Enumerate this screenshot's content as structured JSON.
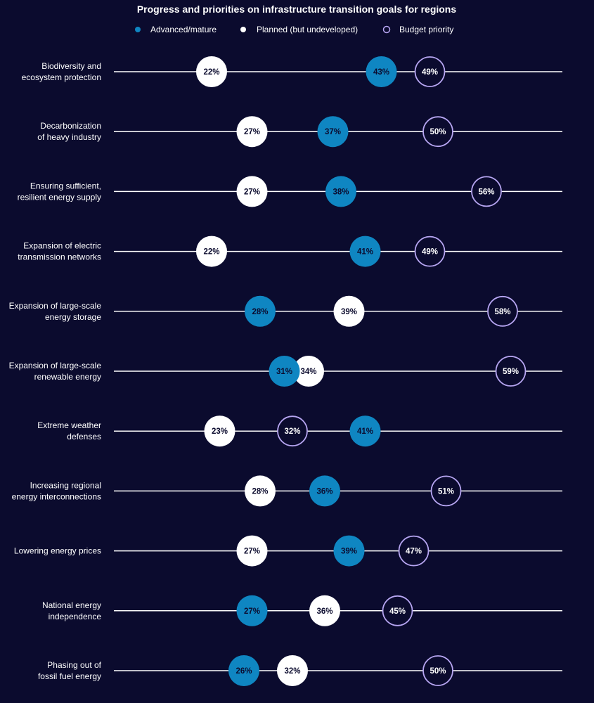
{
  "chart_data": {
    "type": "dot-plot",
    "title": "Progress and priorities on infrastructure transition goals for regions",
    "unit": "%",
    "legend": [
      {
        "key": "advanced",
        "label": "Advanced/mature",
        "color": "#0f86c2",
        "style": "filled"
      },
      {
        "key": "planned",
        "label": "Planned (but undeveloped)",
        "color": "#ffffff",
        "style": "filled"
      },
      {
        "key": "budget",
        "label": "Budget priority",
        "color": "#b7a6f2",
        "style": "outline"
      }
    ],
    "categories": [
      {
        "label": [
          "Biodiversity and",
          "ecosystem protection"
        ],
        "advanced": 43,
        "planned": 22,
        "budget": 49
      },
      {
        "label": [
          "Decarbonization",
          "of heavy industry"
        ],
        "advanced": 37,
        "planned": 27,
        "budget": 50
      },
      {
        "label": [
          "Ensuring sufficient,",
          "resilient energy supply"
        ],
        "advanced": 38,
        "planned": 27,
        "budget": 56
      },
      {
        "label": [
          "Expansion of electric",
          "transmission networks"
        ],
        "advanced": 41,
        "planned": 22,
        "budget": 49
      },
      {
        "label": [
          "Expansion of large-scale",
          "energy storage"
        ],
        "advanced": 28,
        "planned": 39,
        "budget": 58
      },
      {
        "label": [
          "Expansion of large-scale",
          "renewable energy"
        ],
        "advanced": 31,
        "planned": 34,
        "budget": 59
      },
      {
        "label": [
          "Extreme weather",
          "defenses"
        ],
        "advanced": 41,
        "planned": 23,
        "budget": 32
      },
      {
        "label": [
          "Increasing regional",
          "energy interconnections"
        ],
        "advanced": 36,
        "planned": 28,
        "budget": 51
      },
      {
        "label": [
          "Lowering energy prices"
        ],
        "advanced": 39,
        "planned": 27,
        "budget": 47
      },
      {
        "label": [
          "National energy",
          "independence"
        ],
        "advanced": 27,
        "planned": 36,
        "budget": 45
      },
      {
        "label": [
          "Phasing out of",
          "fossil fuel energy"
        ],
        "advanced": 26,
        "planned": 32,
        "budget": 50
      }
    ]
  }
}
